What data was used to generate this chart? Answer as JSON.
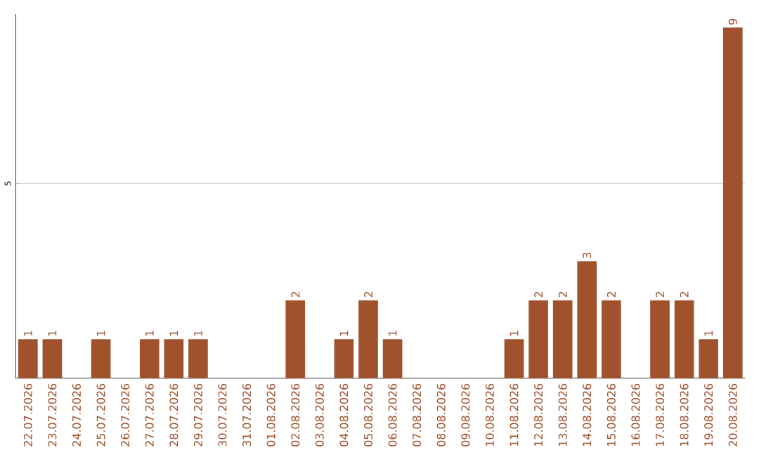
{
  "chart_data": {
    "type": "bar",
    "categories": [
      "22.07.2026",
      "23.07.2026",
      "24.07.2026",
      "25.07.2026",
      "26.07.2026",
      "27.07.2026",
      "28.07.2026",
      "29.07.2026",
      "30.07.2026",
      "31.07.2026",
      "01.08.2026",
      "02.08.2026",
      "03.08.2026",
      "04.08.2026",
      "05.08.2026",
      "06.08.2026",
      "07.08.2026",
      "08.08.2026",
      "09.08.2026",
      "10.08.2026",
      "11.08.2026",
      "12.08.2026",
      "13.08.2026",
      "14.08.2026",
      "15.08.2026",
      "16.08.2026",
      "17.08.2026",
      "18.08.2026",
      "19.08.2026",
      "20.08.2026"
    ],
    "values": [
      1,
      1,
      0,
      1,
      0,
      1,
      1,
      1,
      0,
      0,
      0,
      2,
      0,
      1,
      2,
      1,
      0,
      0,
      0,
      0,
      1,
      2,
      2,
      3,
      2,
      0,
      2,
      2,
      1,
      9
    ],
    "value_labels": [
      "1",
      "1",
      null,
      "1",
      null,
      "1",
      "1",
      "1",
      null,
      null,
      null,
      "2",
      null,
      "1",
      "2",
      "1",
      null,
      null,
      null,
      null,
      "1",
      "2",
      "2",
      "3",
      "2",
      null,
      "2",
      "2",
      "1",
      "9"
    ],
    "color": "#a0522d",
    "ylim": [
      0,
      9.35
    ],
    "yticks": [
      5
    ],
    "grid": "y"
  }
}
